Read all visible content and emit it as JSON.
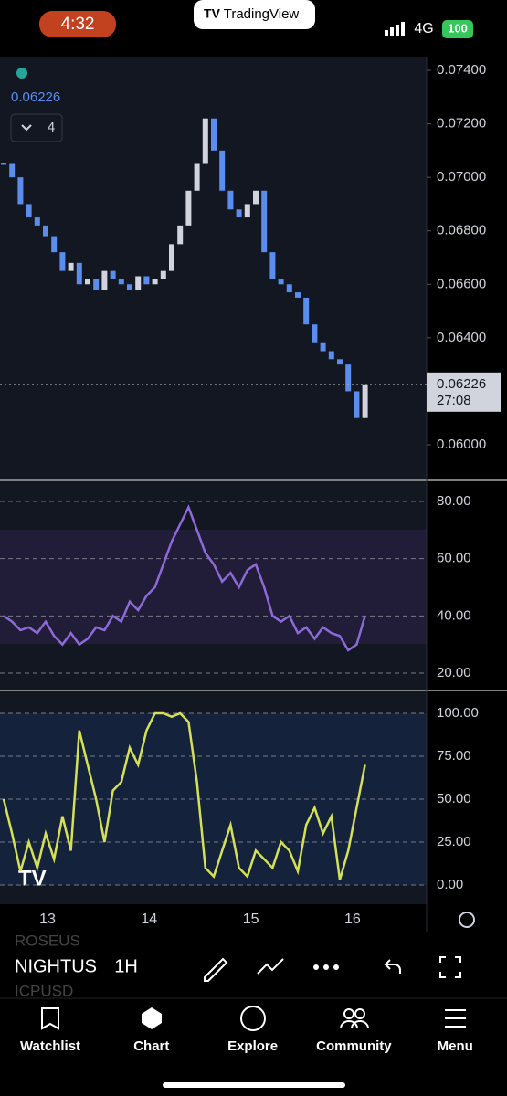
{
  "status_bar": {
    "time": "4:32",
    "app": "TradingView",
    "network": "4G",
    "battery": "100"
  },
  "chart": {
    "type": "candlestick",
    "last_price": "0.06226",
    "indicator_count": "4",
    "price_label": "0.06226",
    "countdown": "27:08",
    "price_ticks": [
      {
        "value": 0.074,
        "label": "0.07400"
      },
      {
        "value": 0.072,
        "label": "0.07200"
      },
      {
        "value": 0.07,
        "label": "0.07000"
      },
      {
        "value": 0.068,
        "label": "0.06800"
      },
      {
        "value": 0.066,
        "label": "0.06600"
      },
      {
        "value": 0.064,
        "label": "0.06400"
      },
      {
        "value": 0.06,
        "label": "0.06000"
      }
    ],
    "rsi_ticks": [
      {
        "value": 80,
        "label": "80.00"
      },
      {
        "value": 60,
        "label": "60.00"
      },
      {
        "value": 40,
        "label": "40.00"
      },
      {
        "value": 20,
        "label": "20.00"
      }
    ],
    "stoch_ticks": [
      {
        "value": 100,
        "label": "100.00"
      },
      {
        "value": 75,
        "label": "75.00"
      },
      {
        "value": 50,
        "label": "50.00"
      },
      {
        "value": 25,
        "label": "25.00"
      },
      {
        "value": 0,
        "label": "0.00"
      }
    ],
    "dates": [
      "13",
      "14",
      "15",
      "16"
    ],
    "closes": [
      0.0705,
      0.07,
      0.069,
      0.0685,
      0.0682,
      0.0678,
      0.0672,
      0.0665,
      0.0668,
      0.066,
      0.0662,
      0.0658,
      0.0665,
      0.0662,
      0.066,
      0.0658,
      0.0663,
      0.066,
      0.0662,
      0.0665,
      0.0675,
      0.0682,
      0.0695,
      0.0705,
      0.0722,
      0.071,
      0.0695,
      0.0688,
      0.0685,
      0.069,
      0.0695,
      0.0672,
      0.0662,
      0.066,
      0.0657,
      0.0655,
      0.0645,
      0.0638,
      0.0635,
      0.0632,
      0.063,
      0.062,
      0.061,
      0.06226
    ],
    "rsi": [
      40,
      38,
      35,
      36,
      34,
      38,
      33,
      30,
      34,
      30,
      32,
      36,
      35,
      40,
      38,
      45,
      42,
      47,
      50,
      58,
      66,
      72,
      78,
      70,
      62,
      58,
      52,
      55,
      50,
      56,
      58,
      50,
      40,
      38,
      40,
      34,
      36,
      32,
      36,
      34,
      33,
      28,
      30,
      40
    ],
    "stoch": [
      50,
      30,
      8,
      25,
      10,
      30,
      15,
      40,
      20,
      90,
      70,
      50,
      25,
      55,
      60,
      80,
      70,
      90,
      100,
      100,
      98,
      100,
      95,
      60,
      10,
      5,
      20,
      35,
      10,
      5,
      20,
      15,
      10,
      25,
      20,
      8,
      35,
      45,
      30,
      40,
      3,
      20,
      45,
      70
    ]
  },
  "toolbar": {
    "symbol": "NIGHTUS",
    "interval": "1H",
    "ghosts": [
      "ROSEUS",
      "ICPUSD"
    ]
  },
  "nav": [
    "Watchlist",
    "Chart",
    "Explore",
    "Community",
    "Menu"
  ]
}
